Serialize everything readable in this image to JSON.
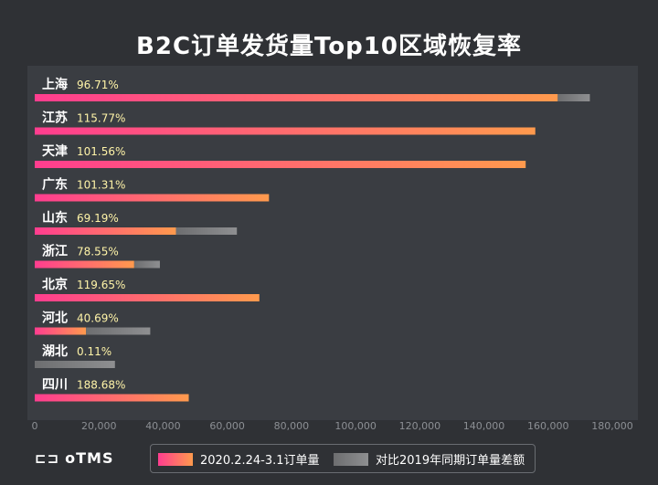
{
  "title": "B2C订单发货量Top10区域恢复率",
  "logo_text": "oTMS",
  "colors": {
    "background": "#2f3135",
    "panel": "#3a3d42",
    "bar_gradient_start": "#ff3d8f",
    "bar_gradient_end": "#ff9a4d",
    "diff_bar": "#8a8b8d",
    "percent_text": "#fff4a8"
  },
  "legend": {
    "series_2020": "2020.2.24-3.1订单量",
    "series_diff": "对比2019年同期订单量差额"
  },
  "chart_data": {
    "type": "bar",
    "orientation": "horizontal",
    "stacked": true,
    "title": "B2C订单发货量Top10区域恢复率",
    "categories": [
      "上海",
      "江苏",
      "天津",
      "广东",
      "山东",
      "浙江",
      "北京",
      "河北",
      "湖北",
      "四川"
    ],
    "recovery_rates": [
      "96.71%",
      "115.77%",
      "101.56%",
      "101.31%",
      "69.19%",
      "78.55%",
      "119.65%",
      "40.69%",
      "0.11%",
      "188.68%"
    ],
    "series": [
      {
        "name": "2020.2.24-3.1订单量",
        "values": [
          163000,
          156000,
          153000,
          73000,
          44000,
          31000,
          70000,
          16000,
          0,
          48000
        ]
      },
      {
        "name": "对比2019年同期订单量差额",
        "values": [
          10000,
          0,
          0,
          0,
          19000,
          8000,
          0,
          20000,
          25000,
          0
        ]
      }
    ],
    "x_ticks": [
      "0",
      "20,000",
      "40,000",
      "60,000",
      "80,000",
      "100,000",
      "120,000",
      "140,000",
      "160,000",
      "180,000"
    ],
    "xlim": [
      0,
      180000
    ],
    "grid": false,
    "legend_position": "bottom"
  }
}
